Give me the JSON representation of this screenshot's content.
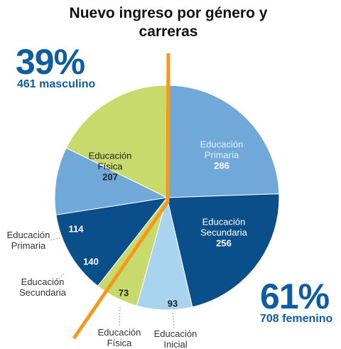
{
  "title": "Nuevo ingreso por género y carreras",
  "annotations": {
    "male_percent": "39%",
    "male_count": "461 masculino",
    "female_percent": "61%",
    "female_count": "708 femenino"
  },
  "chart_data": {
    "type": "pie",
    "categories": [
      "Educación Primaria",
      "Educación Secundaria",
      "Educación Inicial",
      "Educación Física",
      "Educación Secundaria",
      "Educación Primaria",
      "Educación Física"
    ],
    "values": [
      286,
      256,
      93,
      73,
      140,
      114,
      207
    ],
    "colors": [
      "#6fa8d9",
      "#0b4f8a",
      "#a8d4f0",
      "#c8da6c",
      "#0b4f8a",
      "#6fa8d9",
      "#c8da6c"
    ]
  }
}
